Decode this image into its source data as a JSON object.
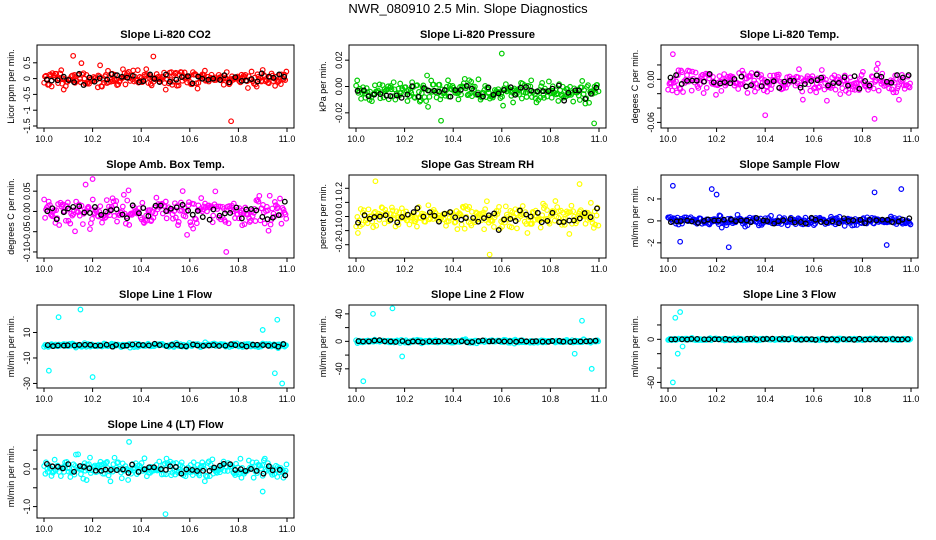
{
  "main_title": "NWR_080910  2.5 Min. Slope Diagnostics",
  "chart_data": [
    {
      "type": "scatter",
      "title": "Slope Li-820 CO2",
      "ylabel": "Licor ppm per min.",
      "color": "#ff0000",
      "xlim": [
        10.0,
        11.0
      ],
      "ylim": [
        -1.5,
        1.0
      ],
      "xticks": [
        10.0,
        10.2,
        10.4,
        10.6,
        10.8,
        11.0
      ],
      "yticks": [
        -1.5,
        -1.0,
        -0.5,
        0.0,
        0.5
      ],
      "ytick_labels": [
        "-1.5",
        "-1",
        "-0.5",
        "0",
        "0.5"
      ],
      "center": 0.0,
      "spread": 0.25,
      "outliers": [
        [
          10.77,
          -1.35
        ],
        [
          10.12,
          0.72
        ],
        [
          10.45,
          0.7
        ]
      ],
      "seed": 11
    },
    {
      "type": "scatter",
      "title": "Slope Li-820 Pressure",
      "ylabel": "kPa per min.",
      "color": "#00cc00",
      "xlim": [
        10.0,
        11.0
      ],
      "ylim": [
        -0.03,
        0.03
      ],
      "xticks": [
        10.0,
        10.2,
        10.4,
        10.6,
        10.8,
        11.0
      ],
      "yticks": [
        -0.02,
        0.0,
        0.02
      ],
      "ytick_labels": [
        "-0.02",
        "0.00",
        "0.02"
      ],
      "center": -0.004,
      "spread": 0.007,
      "outliers": [
        [
          10.35,
          -0.026
        ],
        [
          10.6,
          0.025
        ],
        [
          10.98,
          -0.028
        ]
      ],
      "seed": 22
    },
    {
      "type": "scatter",
      "title": "Slope Li-820 Temp.",
      "ylabel": "degees C per min.",
      "color": "#ff00ff",
      "xlim": [
        10.0,
        11.0
      ],
      "ylim": [
        -0.065,
        0.045
      ],
      "xticks": [
        10.0,
        10.2,
        10.4,
        10.6,
        10.8,
        11.0
      ],
      "yticks": [
        -0.06,
        -0.04,
        -0.02,
        0.0,
        0.02
      ],
      "ytick_labels": [
        "-0.06",
        "",
        "",
        "0.00",
        ""
      ],
      "center": -0.003,
      "spread": 0.015,
      "outliers": [
        [
          10.02,
          0.035
        ],
        [
          10.85,
          -0.055
        ],
        [
          10.4,
          -0.05
        ]
      ],
      "seed": 33
    },
    {
      "type": "scatter",
      "title": "Slope Amb. Box Temp.",
      "ylabel": "degrees C per min.",
      "color": "#ff00ff",
      "xlim": [
        10.0,
        11.0
      ],
      "ylim": [
        -0.11,
        0.085
      ],
      "xticks": [
        10.0,
        10.2,
        10.4,
        10.6,
        10.8,
        11.0
      ],
      "yticks": [
        -0.1,
        -0.05,
        0.0,
        0.05
      ],
      "ytick_labels": [
        "-0.10",
        "-0.05",
        "0.00",
        "0.05"
      ],
      "center": 0.0,
      "spread": 0.035,
      "outliers": [
        [
          10.75,
          -0.1
        ],
        [
          10.2,
          0.08
        ]
      ],
      "seed": 44
    },
    {
      "type": "scatter",
      "title": "Slope Gas Stream RH",
      "ylabel": "percent per min.",
      "color": "#ffff00",
      "xlim": [
        10.0,
        11.0
      ],
      "ylim": [
        -0.28,
        0.28
      ],
      "xticks": [
        10.0,
        10.2,
        10.4,
        10.6,
        10.8,
        11.0
      ],
      "yticks": [
        -0.2,
        -0.1,
        0.0,
        0.1,
        0.2
      ],
      "ytick_labels": [
        "-0.2",
        "-0.1",
        "0.0",
        "0.1",
        "0.2"
      ],
      "center": 0.0,
      "spread": 0.08,
      "outliers": [
        [
          10.08,
          0.25
        ],
        [
          10.55,
          -0.27
        ],
        [
          10.92,
          0.23
        ]
      ],
      "seed": 55
    },
    {
      "type": "scatter",
      "title": "Slope Sample Flow",
      "ylabel": "ml/min per min.",
      "color": "#0000ff",
      "xlim": [
        10.0,
        11.0
      ],
      "ylim": [
        -3.2,
        4.0
      ],
      "xticks": [
        10.0,
        10.2,
        10.4,
        10.6,
        10.8,
        11.0
      ],
      "yticks": [
        -2,
        0,
        2
      ],
      "ytick_labels": [
        "-2",
        "0",
        "2"
      ],
      "center": 0.0,
      "spread": 0.35,
      "outliers": [
        [
          10.02,
          3.2
        ],
        [
          10.05,
          -1.9
        ],
        [
          10.2,
          2.4
        ],
        [
          10.18,
          2.9
        ],
        [
          10.25,
          -2.4
        ],
        [
          10.85,
          2.6
        ],
        [
          10.9,
          -2.2
        ],
        [
          10.96,
          2.9
        ]
      ],
      "seed": 66
    },
    {
      "type": "scatter",
      "title": "Slope Line 1 Flow",
      "ylabel": "ml/min per min.",
      "color": "#00ffff",
      "xlim": [
        10.0,
        11.0
      ],
      "ylim": [
        -32,
        30
      ],
      "xticks": [
        10.0,
        10.2,
        10.4,
        10.6,
        10.8,
        11.0
      ],
      "yticks": [
        -30,
        -10,
        10
      ],
      "ytick_labels": [
        "-30",
        "-10",
        "10"
      ],
      "center": 0.0,
      "spread": 1.5,
      "outliers": [
        [
          10.06,
          22
        ],
        [
          10.15,
          28
        ],
        [
          10.2,
          -25
        ],
        [
          10.02,
          -20
        ],
        [
          10.95,
          -22
        ],
        [
          10.98,
          -30
        ],
        [
          10.9,
          12
        ],
        [
          10.96,
          20
        ]
      ],
      "seed": 77
    },
    {
      "type": "scatter",
      "title": "Slope Line 2 Flow",
      "ylabel": "ml/min per min.",
      "color": "#00ffff",
      "xlim": [
        10.0,
        11.0
      ],
      "ylim": [
        -65,
        50
      ],
      "xticks": [
        10.0,
        10.2,
        10.4,
        10.6,
        10.8,
        11.0
      ],
      "yticks": [
        -40,
        -20,
        0,
        20,
        40
      ],
      "ytick_labels": [
        "-40",
        "",
        "0",
        "",
        "40"
      ],
      "center": 0.0,
      "spread": 2.0,
      "outliers": [
        [
          10.07,
          40
        ],
        [
          10.15,
          48
        ],
        [
          10.19,
          -22
        ],
        [
          10.03,
          -58
        ],
        [
          10.93,
          30
        ],
        [
          10.97,
          -40
        ],
        [
          10.9,
          -18
        ]
      ],
      "seed": 88
    },
    {
      "type": "scatter",
      "title": "Slope Line 3 Flow",
      "ylabel": "ml/min per min.",
      "color": "#00ffff",
      "xlim": [
        10.0,
        11.0
      ],
      "ylim": [
        -65,
        45
      ],
      "xticks": [
        10.0,
        10.2,
        10.4,
        10.6,
        10.8,
        11.0
      ],
      "yticks": [
        -60,
        -40,
        -20,
        0,
        20
      ],
      "ytick_labels": [
        "-60",
        "",
        "",
        "0",
        ""
      ],
      "center": 0.0,
      "spread": 1.2,
      "outliers": [
        [
          10.03,
          30
        ],
        [
          10.05,
          38
        ],
        [
          10.04,
          -20
        ],
        [
          10.02,
          -60
        ],
        [
          10.06,
          -10
        ]
      ],
      "seed": 99
    },
    {
      "type": "scatter",
      "title": "Slope Line 4 (LT) Flow",
      "ylabel": "ml/min per min.",
      "color": "#00ffff",
      "xlim": [
        10.0,
        11.0
      ],
      "ylim": [
        -1.25,
        0.85
      ],
      "xticks": [
        10.0,
        10.2,
        10.4,
        10.6,
        10.8,
        11.0
      ],
      "yticks": [
        -1.0,
        -0.5,
        0.0,
        0.5
      ],
      "ytick_labels": [
        "-1.0",
        "",
        "0.0",
        ""
      ],
      "center": 0.0,
      "spread": 0.22,
      "outliers": [
        [
          10.5,
          -1.2
        ],
        [
          10.35,
          0.72
        ],
        [
          10.9,
          -0.6
        ]
      ],
      "seed": 111
    }
  ]
}
